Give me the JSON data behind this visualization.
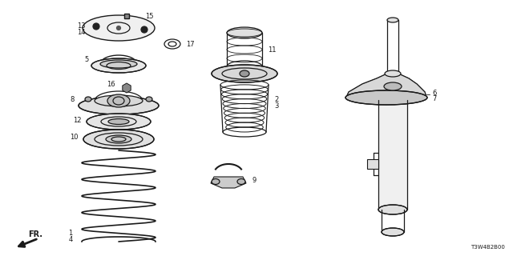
{
  "bg_color": "#ffffff",
  "line_color": "#1a1a1a",
  "fig_width": 6.4,
  "fig_height": 3.2,
  "dpi": 100,
  "part_code": "T3W4B2B00",
  "arrow_label": "FR."
}
